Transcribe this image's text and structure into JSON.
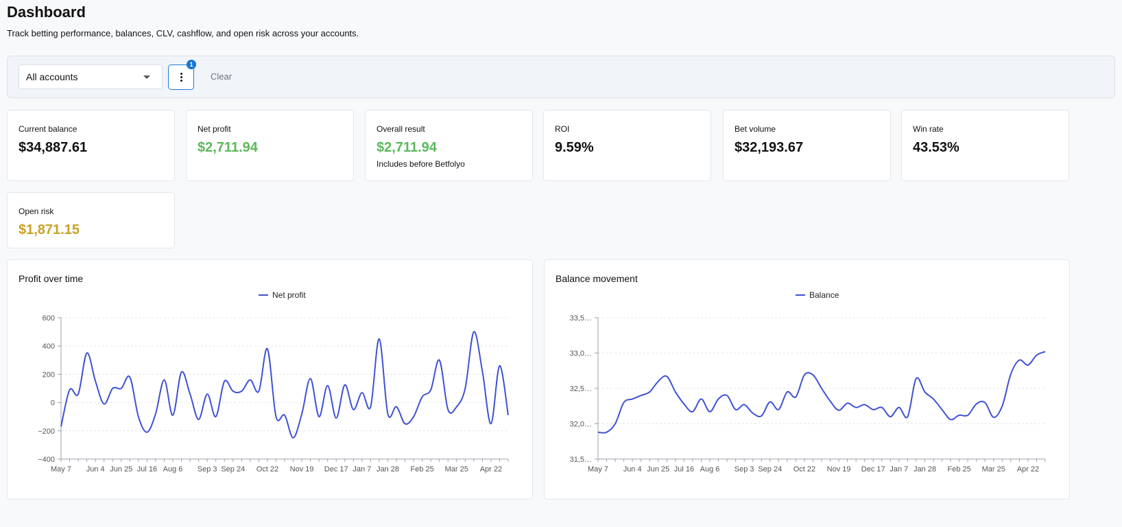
{
  "page": {
    "title": "Dashboard",
    "subtitle": "Track betting performance, balances, CLV, cashflow, and open risk across your accounts."
  },
  "filters": {
    "account_value": "All accounts",
    "badge_count": "1",
    "clear_label": "Clear",
    "more_icon": "kebab-vertical-icon",
    "dropdown_icon": "chevron-down-icon"
  },
  "colors": {
    "accent": "#1976d2",
    "positive": "#5cb85c",
    "risk": "#c9a227",
    "series": "#3f51d4"
  },
  "stats": {
    "current_balance": {
      "label": "Current balance",
      "value": "$34,887.61"
    },
    "net_profit": {
      "label": "Net profit",
      "value": "$2,711.94"
    },
    "overall_result": {
      "label": "Overall result",
      "value": "$2,711.94",
      "note": "Includes before Betfolyo"
    },
    "roi": {
      "label": "ROI",
      "value": "9.59%"
    },
    "bet_volume": {
      "label": "Bet volume",
      "value": "$32,193.67"
    },
    "win_rate": {
      "label": "Win rate",
      "value": "43.53%"
    },
    "open_risk": {
      "label": "Open risk",
      "value": "$1,871.15"
    }
  },
  "chart_data": [
    {
      "type": "line",
      "title": "Profit over time",
      "legend": "top",
      "grid": true,
      "ylim": [
        -400,
        600
      ],
      "yticks": [
        -400,
        -200,
        0,
        200,
        400,
        600
      ],
      "ytick_labels": [
        "−400",
        "−200",
        "0",
        "200",
        "400",
        "600"
      ],
      "xtick_labels": [
        "May 7",
        "Jun 4",
        "Jun 25",
        "Jul 16",
        "Aug 6",
        "Sep 3",
        "Sep 24",
        "Oct 22",
        "Nov 19",
        "Dec 17",
        "Jan 7",
        "Jan 28",
        "Feb 25",
        "Mar 25",
        "Apr 22"
      ],
      "xtick_index": [
        0,
        4,
        7,
        10,
        13,
        17,
        20,
        24,
        28,
        32,
        35,
        38,
        42,
        46,
        50
      ],
      "series": [
        {
          "name": "Net profit",
          "values": [
            -170,
            90,
            60,
            350,
            150,
            -10,
            100,
            100,
            180,
            -100,
            -210,
            -80,
            160,
            -90,
            215,
            60,
            -120,
            60,
            -100,
            150,
            80,
            80,
            160,
            80,
            380,
            -100,
            -90,
            -250,
            -80,
            170,
            -100,
            120,
            -110,
            125,
            -50,
            70,
            -30,
            450,
            -80,
            -30,
            -150,
            -100,
            40,
            90,
            300,
            -50,
            -30,
            100,
            500,
            220,
            -150,
            260,
            -90
          ]
        }
      ]
    },
    {
      "type": "line",
      "title": "Balance movement",
      "legend": "top",
      "grid": true,
      "ylim": [
        31500,
        33500
      ],
      "yticks": [
        31500,
        32000,
        32500,
        33000,
        33500
      ],
      "ytick_labels": [
        "31,5…",
        "32,0…",
        "32,5…",
        "33,0…",
        "33,5…"
      ],
      "xtick_labels": [
        "May 7",
        "Jun 4",
        "Jun 25",
        "Jul 16",
        "Aug 6",
        "Sep 3",
        "Sep 24",
        "Oct 22",
        "Nov 19",
        "Dec 17",
        "Jan 7",
        "Jan 28",
        "Feb 25",
        "Mar 25",
        "Apr 22"
      ],
      "xtick_index": [
        0,
        4,
        7,
        10,
        13,
        17,
        20,
        24,
        28,
        32,
        35,
        38,
        42,
        46,
        50
      ],
      "series": [
        {
          "name": "Balance",
          "values": [
            31880,
            31880,
            32000,
            32300,
            32350,
            32400,
            32450,
            32600,
            32670,
            32450,
            32280,
            32170,
            32350,
            32170,
            32350,
            32400,
            32200,
            32270,
            32150,
            32110,
            32310,
            32200,
            32450,
            32380,
            32690,
            32690,
            32500,
            32320,
            32190,
            32290,
            32230,
            32270,
            32200,
            32230,
            32100,
            32230,
            32100,
            32640,
            32450,
            32350,
            32200,
            32060,
            32120,
            32120,
            32280,
            32300,
            32090,
            32250,
            32700,
            32900,
            32830,
            32970,
            33020
          ]
        }
      ]
    }
  ]
}
